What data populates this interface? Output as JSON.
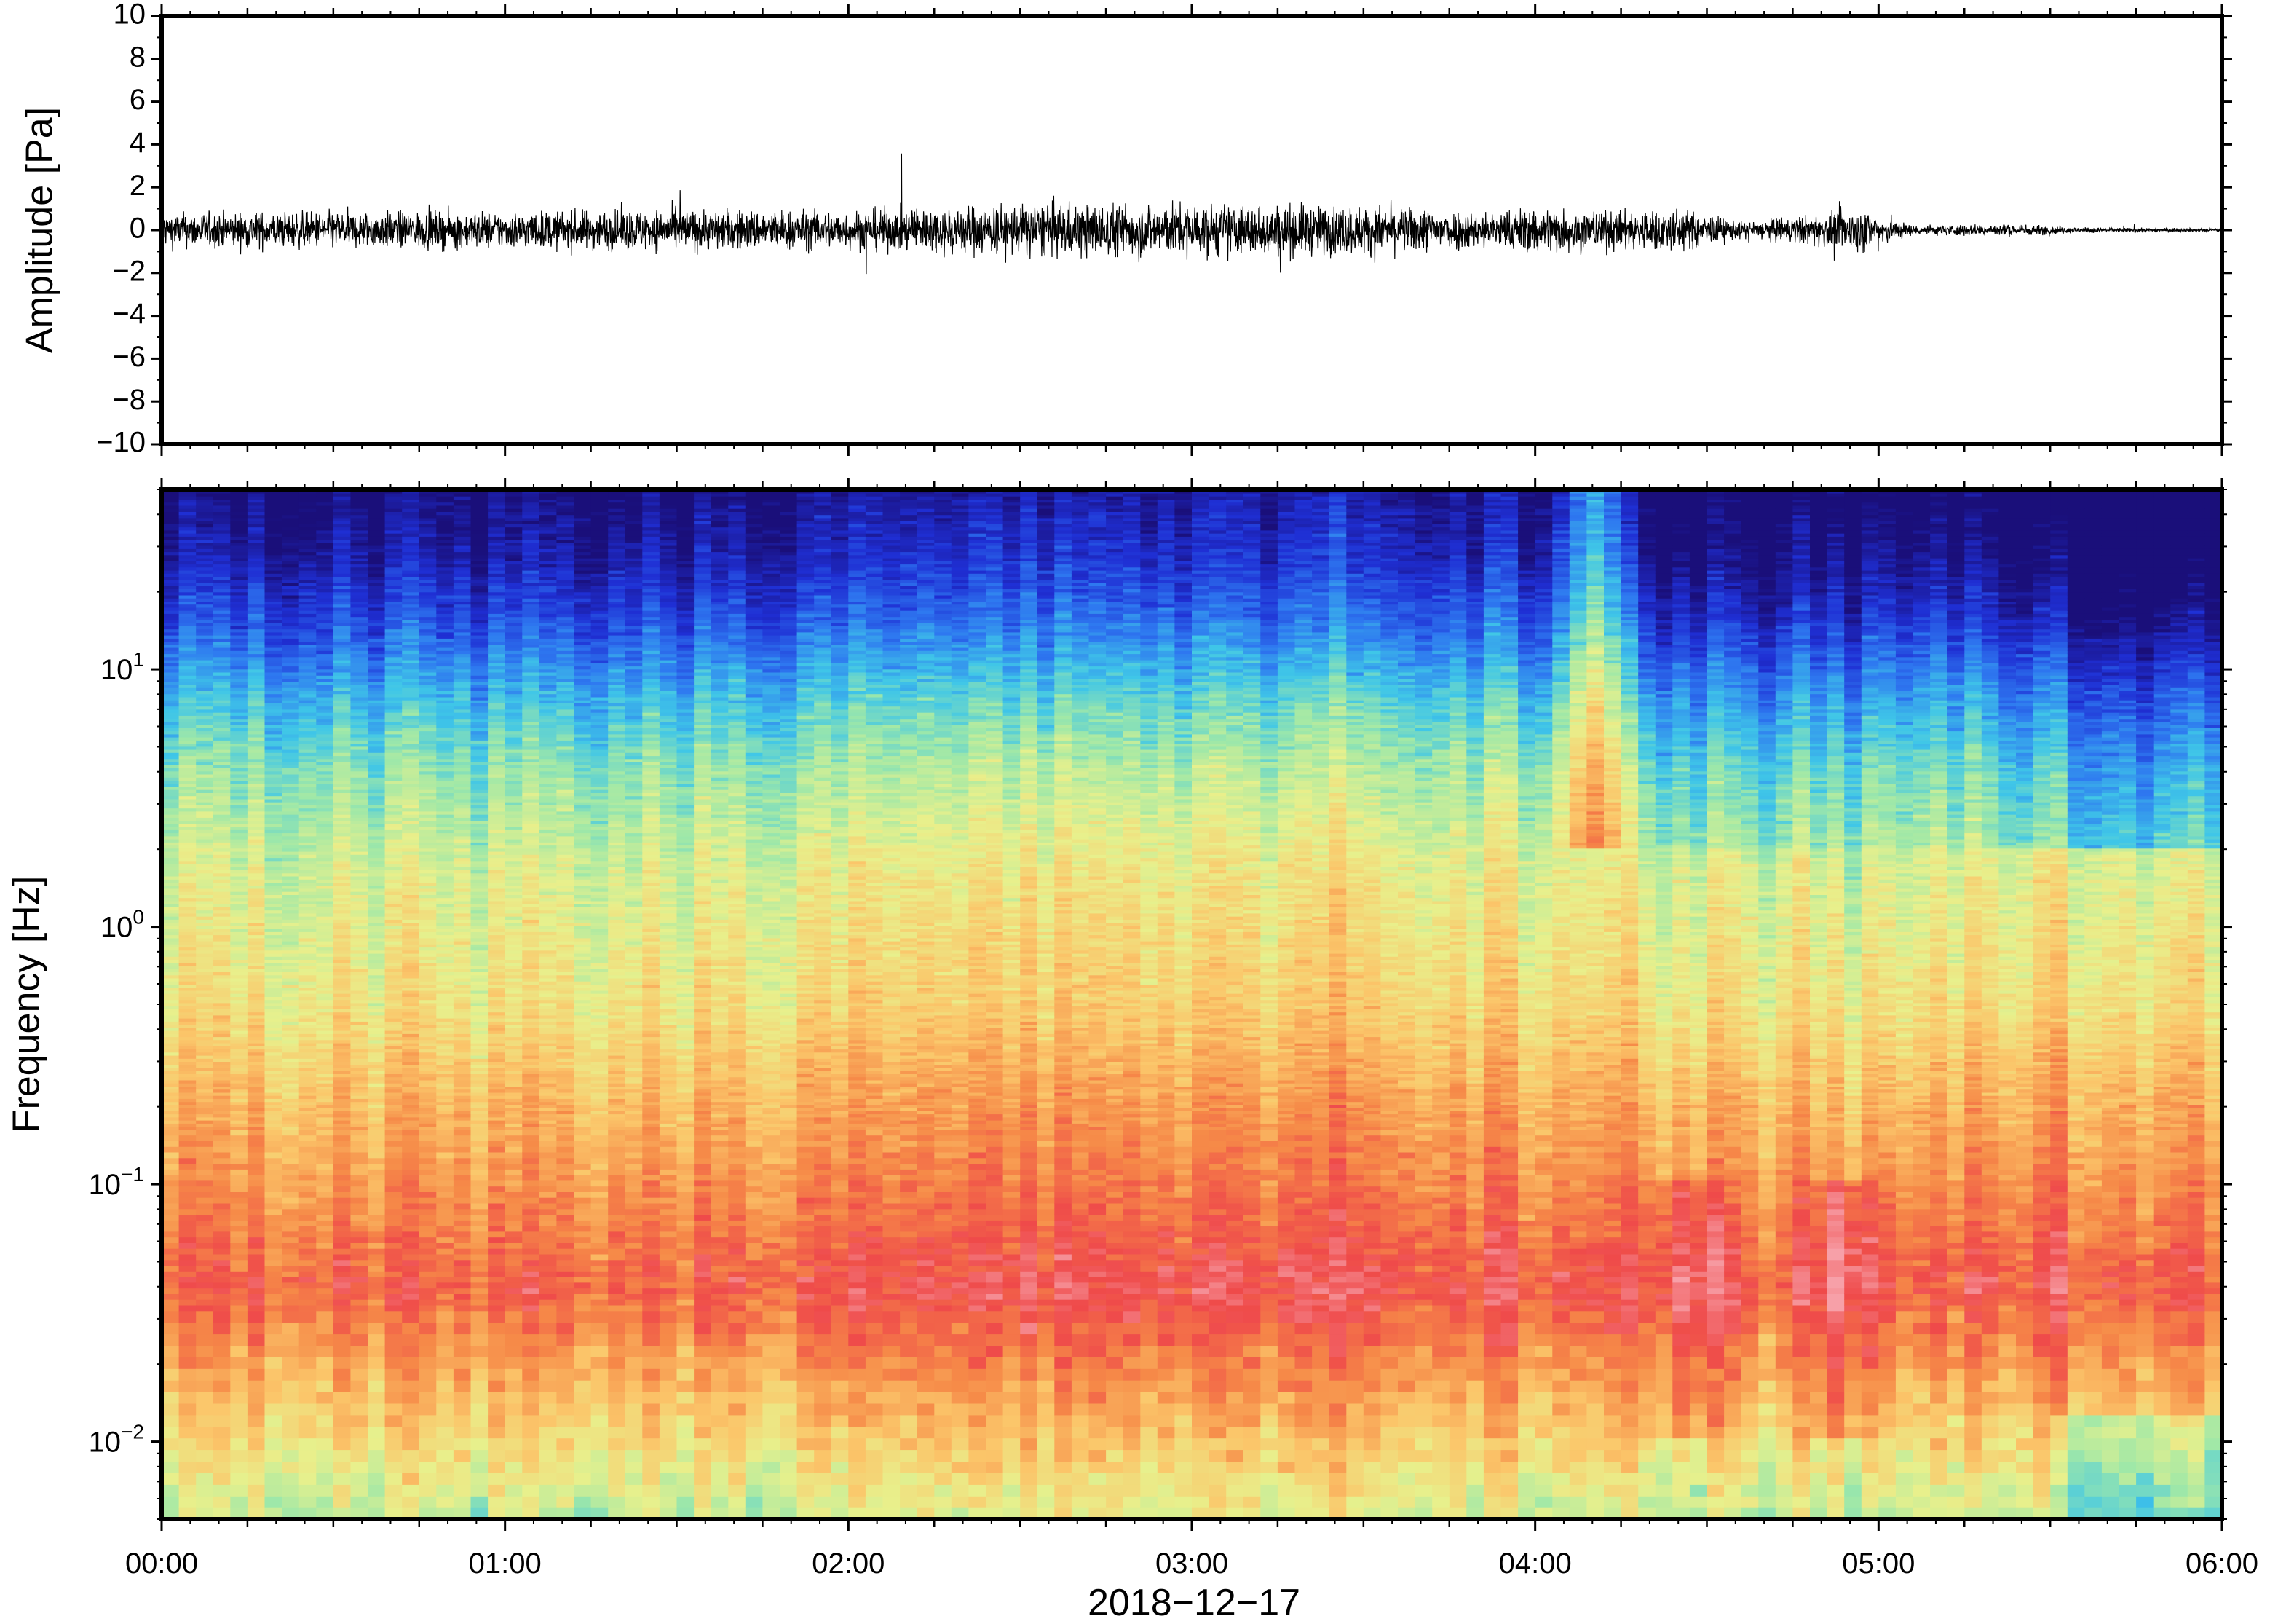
{
  "chart_data": [
    {
      "type": "line",
      "ylabel": "Amplitude [Pa]",
      "ylim": [
        -10,
        10
      ],
      "yticks": [
        10,
        8,
        6,
        4,
        2,
        0,
        -2,
        -4,
        -6,
        -8,
        -10
      ],
      "ytick_labels": [
        "10",
        "8",
        "6",
        "4",
        "2",
        "0",
        "−2",
        "−4",
        "−6",
        "−8",
        "−10"
      ],
      "x_range_hours": [
        0,
        6
      ],
      "series": [
        {
          "color": "#000000",
          "envelope_hours": [
            0,
            0.5,
            1,
            1.5,
            2,
            2.5,
            3,
            3.5,
            3.9,
            4.0,
            4.2,
            4.4,
            4.6,
            4.8,
            4.95,
            5.1,
            5.4,
            5.6,
            6.0
          ],
          "envelope_amplitude_pa": [
            0.7,
            0.75,
            0.75,
            0.85,
            0.8,
            1.1,
            1.1,
            1.0,
            0.75,
            1.0,
            0.8,
            0.9,
            0.35,
            0.6,
            0.9,
            0.2,
            0.25,
            0.1,
            0.06
          ]
        }
      ]
    },
    {
      "type": "heatmap",
      "ylabel": "Frequency [Hz]",
      "yscale": "log",
      "ylim": [
        0.005,
        50
      ],
      "ytick_labels": [
        {
          "value": 0.01,
          "base": "10",
          "exp": "−2"
        },
        {
          "value": 0.1,
          "base": "10",
          "exp": "−1"
        },
        {
          "value": 1,
          "base": "10",
          "exp": "0"
        },
        {
          "value": 10,
          "base": "10",
          "exp": "1"
        }
      ],
      "colormap": [
        "#1a0f7a",
        "#1f2fd4",
        "#2e78f0",
        "#3fc6e8",
        "#9fe8a8",
        "#e8f08c",
        "#fbc66a",
        "#f68a48",
        "#ef4a4a",
        "#f7a0a8"
      ],
      "xlabel": "2018−12−17",
      "xticks": [
        "00:00",
        "01:00",
        "02:00",
        "03:00",
        "04:00",
        "05:00",
        "06:00"
      ],
      "xtick_hours": [
        0,
        1,
        2,
        3,
        4,
        5,
        6
      ]
    }
  ]
}
